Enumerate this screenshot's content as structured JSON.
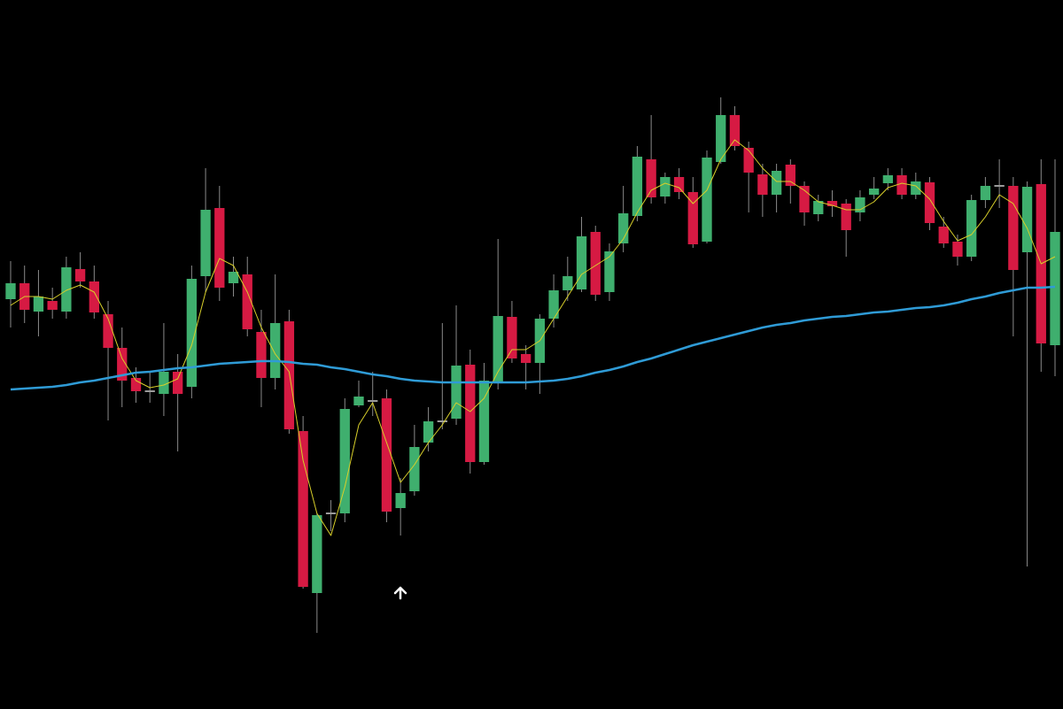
{
  "chart_data": {
    "type": "candlestick",
    "ylim": [
      0,
      801
    ],
    "up_color": "#3faf6e",
    "down_color": "#d61a43",
    "flat_color": "#9a9a9a",
    "open": [
      463,
      481,
      449,
      461,
      449,
      497,
      483,
      446,
      408,
      374,
      360,
      356,
      381,
      364,
      489,
      566,
      481,
      491,
      426,
      374,
      438,
      314,
      131,
      222,
      221,
      343,
      349,
      351,
      227,
      246,
      301,
      326,
      328,
      389,
      279,
      369,
      443,
      401,
      391,
      441,
      473,
      474,
      539,
      471,
      526,
      557,
      621,
      579,
      601,
      584,
      528,
      618,
      671,
      634,
      604,
      581,
      615,
      591,
      559,
      574,
      571,
      561,
      581,
      594,
      603,
      581,
      595,
      545,
      528,
      511,
      575,
      592,
      591,
      516,
      593,
      411
    ],
    "high": [
      506,
      501,
      496,
      476,
      511,
      516,
      501,
      461,
      431,
      386,
      381,
      436,
      401,
      501,
      611,
      591,
      511,
      511,
      451,
      491,
      451,
      331,
      221,
      236,
      351,
      371,
      381,
      361,
      261,
      321,
      341,
      436,
      456,
      406,
      391,
      531,
      461,
      411,
      446,
      491,
      511,
      556,
      546,
      526,
      591,
      636,
      671,
      606,
      611,
      601,
      631,
      691,
      681,
      641,
      616,
      616,
      621,
      596,
      581,
      586,
      576,
      586,
      601,
      611,
      611,
      606,
      601,
      556,
      536,
      581,
      601,
      621,
      601,
      596,
      621,
      621
    ],
    "low": [
      431,
      436,
      421,
      441,
      441,
      476,
      441,
      326,
      341,
      346,
      346,
      331,
      291,
      351,
      471,
      461,
      466,
      421,
      341,
      361,
      311,
      136,
      86,
      201,
      211,
      341,
      331,
      211,
      196,
      241,
      291,
      316,
      321,
      266,
      276,
      361,
      391,
      361,
      356,
      431,
      461,
      471,
      461,
      461,
      516,
      551,
      571,
      571,
      576,
      521,
      526,
      616,
      631,
      561,
      556,
      561,
      571,
      546,
      551,
      556,
      511,
      551,
      576,
      586,
      576,
      576,
      541,
      521,
      501,
      506,
      566,
      566,
      421,
      161,
      381,
      376
    ],
    "close": [
      481,
      451,
      466,
      451,
      499,
      483,
      448,
      408,
      371,
      359,
      360,
      381,
      356,
      486,
      564,
      476,
      494,
      429,
      374,
      436,
      316,
      138,
      219,
      222,
      339,
      353,
      349,
      223,
      244,
      296,
      325,
      326,
      388,
      279,
      371,
      444,
      396,
      391,
      441,
      473,
      489,
      534,
      468,
      517,
      560,
      624,
      578,
      601,
      584,
      525,
      623,
      671,
      636,
      606,
      581,
      608,
      591,
      561,
      574,
      568,
      541,
      578,
      588,
      603,
      581,
      596,
      549,
      526,
      511,
      575,
      591,
      592,
      496,
      590,
      413,
      539
    ],
    "overlays": [
      {
        "color": "#d8cf2a",
        "width": 1,
        "values": [
          456,
          466,
          466,
          463,
          473,
          479,
          471,
          441,
          396,
          371,
          363,
          366,
          373,
          411,
          471,
          509,
          501,
          471,
          431,
          401,
          381,
          281,
          221,
          196,
          251,
          321,
          346,
          301,
          256,
          276,
          301,
          321,
          346,
          336,
          351,
          381,
          406,
          406,
          416,
          441,
          466,
          491,
          501,
          511,
          531,
          561,
          586,
          594,
          589,
          571,
          586,
          621,
          643,
          631,
          611,
          596,
          596,
          586,
          573,
          569,
          564,
          564,
          573,
          589,
          594,
          591,
          576,
          551,
          529,
          536,
          556,
          581,
          571,
          543,
          503,
          511
        ]
      },
      {
        "color": "#2f9bd6",
        "width": 2.5,
        "values": [
          361,
          362,
          363,
          364,
          366,
          369,
          371,
          374,
          377,
          380,
          381,
          383,
          385,
          386,
          388,
          390,
          391,
          392,
          393,
          393,
          392,
          390,
          389,
          386,
          384,
          381,
          378,
          376,
          373,
          371,
          370,
          369,
          369,
          369,
          369,
          369,
          369,
          369,
          370,
          371,
          373,
          376,
          380,
          383,
          387,
          392,
          396,
          401,
          406,
          411,
          415,
          419,
          423,
          427,
          431,
          434,
          436,
          439,
          441,
          443,
          444,
          446,
          448,
          449,
          451,
          453,
          454,
          456,
          459,
          463,
          466,
          470,
          473,
          476,
          476,
          477
        ]
      }
    ]
  }
}
